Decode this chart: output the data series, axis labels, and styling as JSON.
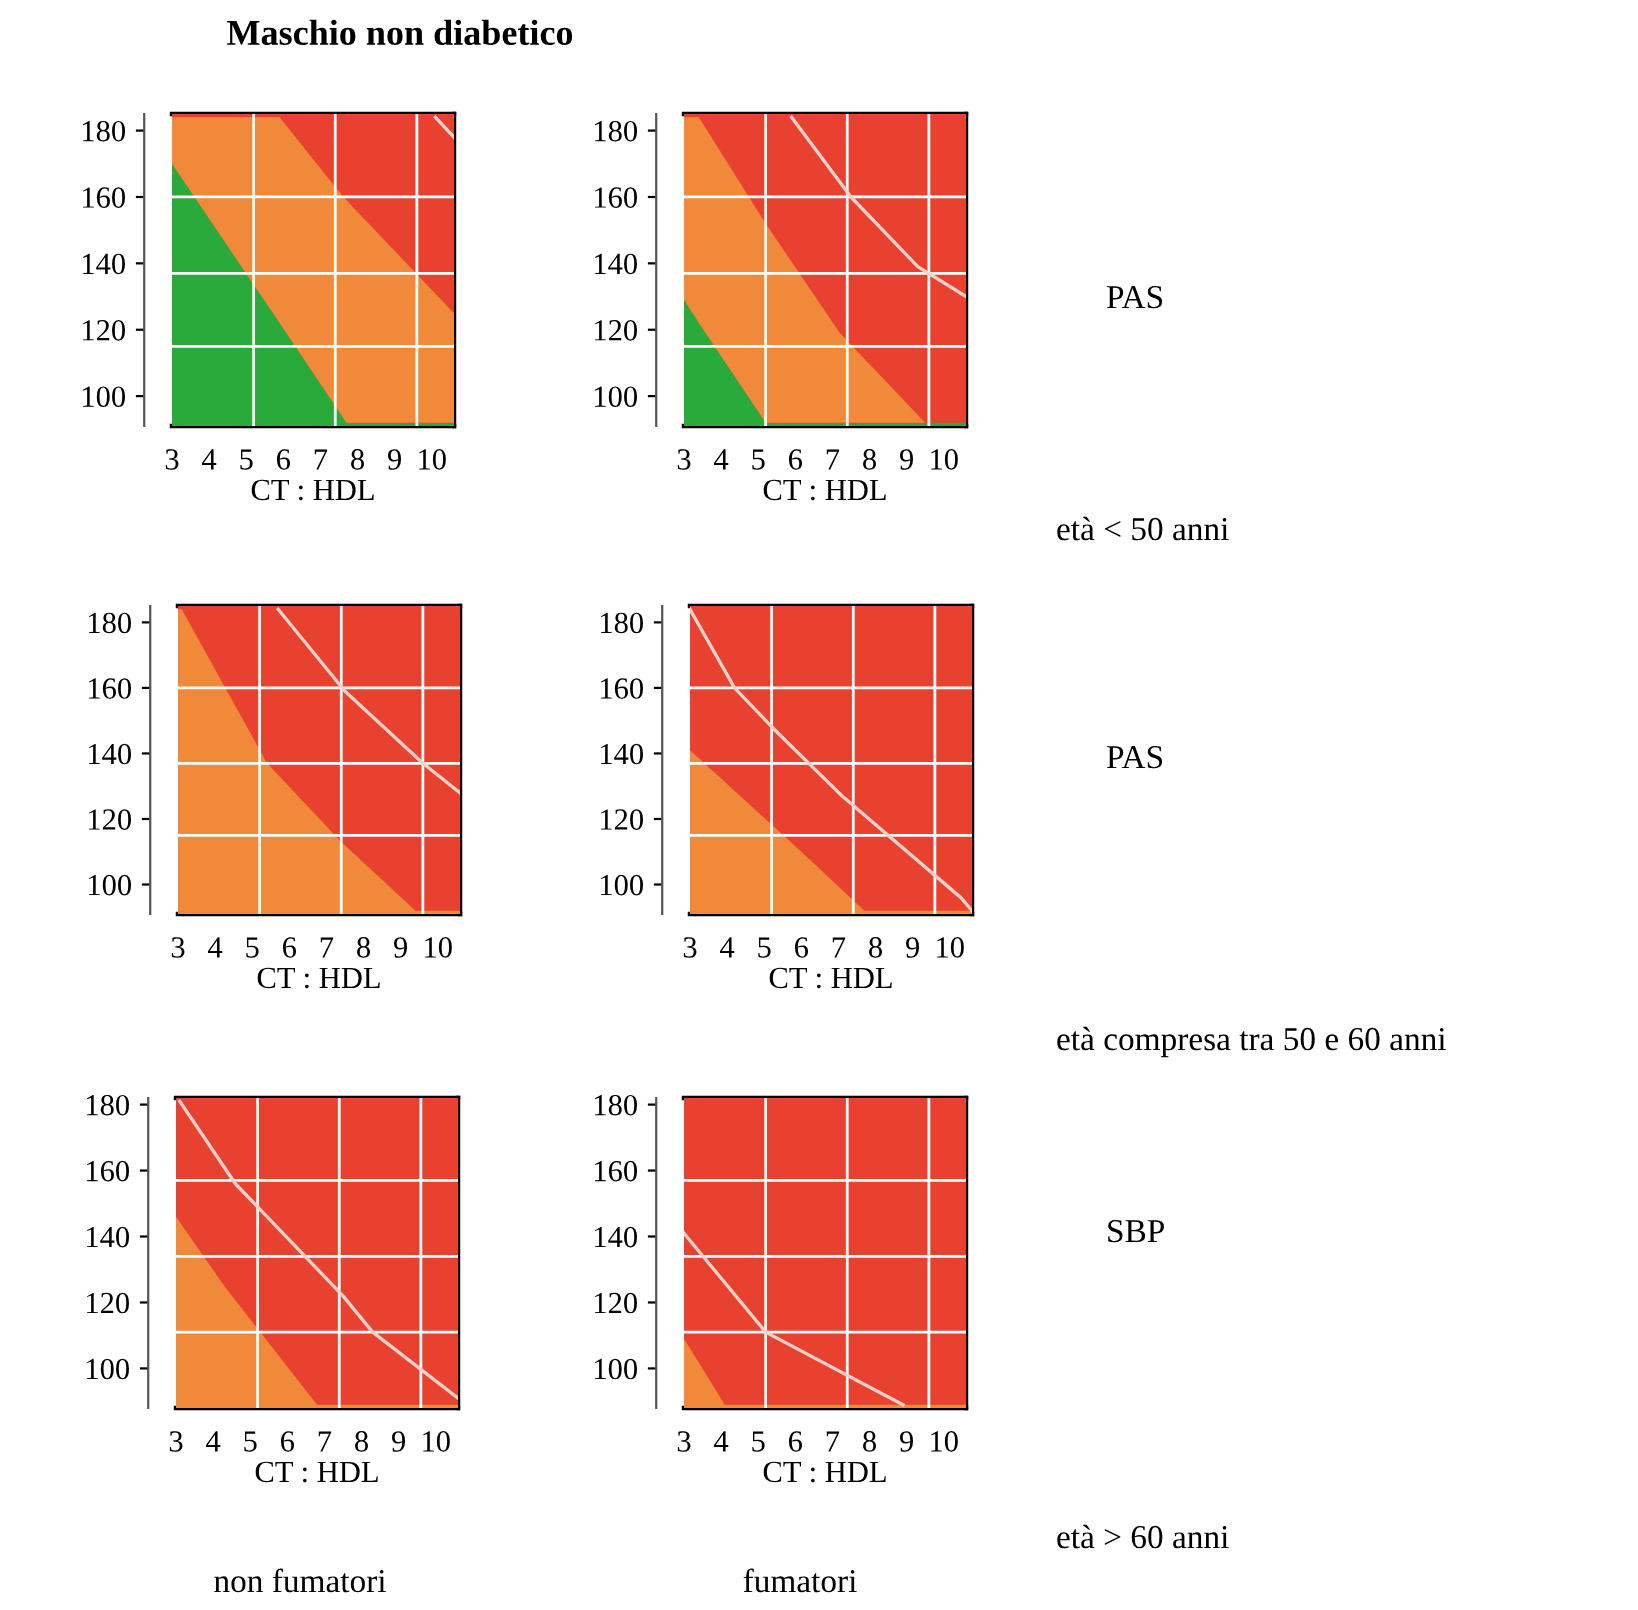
{
  "chart_data": [
    {
      "type": "area",
      "xlabel": "CT : HDL",
      "xlim": [
        3,
        10.6
      ],
      "ylim": [
        91,
        185
      ],
      "xticks": [
        3,
        4,
        5,
        6,
        7,
        8,
        9,
        10
      ],
      "yticks": [
        100,
        120,
        140,
        160,
        180
      ],
      "legend": false,
      "bands": [
        {
          "axis": "y",
          "from": 91,
          "to": 185,
          "color": "#e8412f"
        }
      ],
      "ref_lines": [
        {
          "axis": "x",
          "value": 5.2,
          "color": "#ffffff"
        },
        {
          "axis": "x",
          "value": 7.4,
          "color": "#ffffff"
        },
        {
          "axis": "x",
          "value": 9.6,
          "color": "#ffffff"
        },
        {
          "axis": "y",
          "value": 115,
          "color": "#ffffff"
        },
        {
          "axis": "y",
          "value": 137,
          "color": "#ffffff"
        },
        {
          "axis": "y",
          "value": 160,
          "color": "#ffffff"
        }
      ],
      "x": [
        3,
        5.9,
        7.4,
        7.7,
        10.6
      ],
      "series": [
        {
          "type": "area",
          "color": "#2aaa3a",
          "values": [
            170,
            122,
            97,
            92,
            92
          ]
        },
        {
          "type": "area",
          "color": "#f08a3a",
          "values": [
            184,
            184,
            163,
            159,
            125
          ]
        },
        {
          "type": "line",
          "color": "#f4d0c8",
          "x": [
            10.1,
            10.6
          ],
          "values": [
            184,
            178
          ]
        }
      ]
    },
    {
      "type": "area",
      "xlabel": "CT : HDL",
      "xlim": [
        3,
        10.6
      ],
      "ylim": [
        91,
        185
      ],
      "xticks": [
        3,
        4,
        5,
        6,
        7,
        8,
        9,
        10
      ],
      "yticks": [
        100,
        120,
        140,
        160,
        180
      ],
      "legend": false,
      "bands": [
        {
          "axis": "y",
          "from": 91,
          "to": 185,
          "color": "#e8412f"
        }
      ],
      "ref_lines": [
        {
          "axis": "x",
          "value": 5.2,
          "color": "#ffffff"
        },
        {
          "axis": "x",
          "value": 7.4,
          "color": "#ffffff"
        },
        {
          "axis": "x",
          "value": 9.6,
          "color": "#ffffff"
        },
        {
          "axis": "y",
          "value": 115,
          "color": "#ffffff"
        },
        {
          "axis": "y",
          "value": 137,
          "color": "#ffffff"
        },
        {
          "axis": "y",
          "value": 160,
          "color": "#ffffff"
        }
      ],
      "x": [
        3,
        3.4,
        5.2,
        7.2,
        9.5,
        10.6
      ],
      "series": [
        {
          "type": "area",
          "color": "#2aaa3a",
          "values": [
            129,
            122,
            92,
            92,
            92,
            92
          ]
        },
        {
          "type": "area",
          "color": "#f08a3a",
          "values": [
            184,
            184,
            152,
            119,
            92,
            92
          ]
        },
        {
          "type": "line",
          "color": "#f4d0c8",
          "x": [
            5.9,
            7.5,
            9.3,
            10.6
          ],
          "values": [
            184,
            160,
            139,
            130
          ]
        }
      ]
    },
    {
      "type": "area",
      "xlabel": "CT : HDL",
      "xlim": [
        3,
        10.6
      ],
      "ylim": [
        91,
        185
      ],
      "xticks": [
        3,
        4,
        5,
        6,
        7,
        8,
        9,
        10
      ],
      "yticks": [
        100,
        120,
        140,
        160,
        180
      ],
      "legend": false,
      "bands": [
        {
          "axis": "y",
          "from": 91,
          "to": 185,
          "color": "#e8412f"
        }
      ],
      "ref_lines": [
        {
          "axis": "x",
          "value": 5.2,
          "color": "#ffffff"
        },
        {
          "axis": "x",
          "value": 7.4,
          "color": "#ffffff"
        },
        {
          "axis": "x",
          "value": 9.6,
          "color": "#ffffff"
        },
        {
          "axis": "y",
          "value": 115,
          "color": "#ffffff"
        },
        {
          "axis": "y",
          "value": 137,
          "color": "#ffffff"
        },
        {
          "axis": "y",
          "value": 160,
          "color": "#ffffff"
        }
      ],
      "x": [
        3,
        3.1,
        5.4,
        7.4,
        9.4,
        10.6
      ],
      "series": [
        {
          "type": "area",
          "color": "#f08a3a",
          "values": [
            184,
            184,
            137,
            113,
            92,
            92
          ]
        },
        {
          "type": "line",
          "color": "#f4d0c8",
          "x": [
            5.7,
            7.5,
            9.6,
            10.6
          ],
          "values": [
            184,
            159,
            137,
            128
          ]
        }
      ]
    },
    {
      "type": "area",
      "xlabel": "CT : HDL",
      "xlim": [
        3,
        10.6
      ],
      "ylim": [
        91,
        185
      ],
      "xticks": [
        3,
        4,
        5,
        6,
        7,
        8,
        9,
        10
      ],
      "yticks": [
        100,
        120,
        140,
        160,
        180
      ],
      "legend": false,
      "bands": [
        {
          "axis": "y",
          "from": 91,
          "to": 185,
          "color": "#e8412f"
        }
      ],
      "ref_lines": [
        {
          "axis": "x",
          "value": 5.2,
          "color": "#ffffff"
        },
        {
          "axis": "x",
          "value": 7.4,
          "color": "#ffffff"
        },
        {
          "axis": "x",
          "value": 9.6,
          "color": "#ffffff"
        },
        {
          "axis": "y",
          "value": 115,
          "color": "#ffffff"
        },
        {
          "axis": "y",
          "value": 137,
          "color": "#ffffff"
        },
        {
          "axis": "y",
          "value": 160,
          "color": "#ffffff"
        }
      ],
      "x": [
        3,
        6.0,
        7.7,
        10.6
      ],
      "series": [
        {
          "type": "area",
          "color": "#f08a3a",
          "values": [
            141,
            110,
            92,
            92
          ]
        },
        {
          "type": "line",
          "color": "#f4d0c8",
          "x": [
            3,
            4.2,
            5.3,
            7.1,
            10.3,
            10.6
          ],
          "values": [
            184,
            160,
            147,
            127,
            96,
            92
          ]
        }
      ]
    },
    {
      "type": "area",
      "xlabel": "CT : HDL",
      "xlim": [
        3,
        10.6
      ],
      "ylim": [
        88,
        182
      ],
      "xticks": [
        3,
        4,
        5,
        6,
        7,
        8,
        9,
        10
      ],
      "yticks": [
        100,
        120,
        140,
        160,
        180
      ],
      "legend": false,
      "bands": [
        {
          "axis": "y",
          "from": 88,
          "to": 182,
          "color": "#e8412f"
        }
      ],
      "ref_lines": [
        {
          "axis": "x",
          "value": 5.2,
          "color": "#ffffff"
        },
        {
          "axis": "x",
          "value": 7.4,
          "color": "#ffffff"
        },
        {
          "axis": "x",
          "value": 9.6,
          "color": "#ffffff"
        },
        {
          "axis": "y",
          "value": 111,
          "color": "#ffffff"
        },
        {
          "axis": "y",
          "value": 134,
          "color": "#ffffff"
        },
        {
          "axis": "y",
          "value": 157,
          "color": "#ffffff"
        }
      ],
      "x": [
        3,
        4.3,
        6.8,
        10.6
      ],
      "series": [
        {
          "type": "area",
          "color": "#f08a3a",
          "values": [
            146,
            125,
            89,
            89
          ]
        },
        {
          "type": "line",
          "color": "#f4d0c8",
          "x": [
            3.1,
            4.6,
            7.5,
            8.3,
            10.6
          ],
          "values": [
            181,
            156,
            122,
            111,
            91
          ]
        }
      ]
    },
    {
      "type": "area",
      "xlabel": "CT : HDL",
      "xlim": [
        3,
        10.6
      ],
      "ylim": [
        88,
        182
      ],
      "xticks": [
        3,
        4,
        5,
        6,
        7,
        8,
        9,
        10
      ],
      "yticks": [
        100,
        120,
        140,
        160,
        180
      ],
      "legend": false,
      "bands": [
        {
          "axis": "y",
          "from": 88,
          "to": 182,
          "color": "#e8412f"
        }
      ],
      "ref_lines": [
        {
          "axis": "x",
          "value": 5.2,
          "color": "#ffffff"
        },
        {
          "axis": "x",
          "value": 7.4,
          "color": "#ffffff"
        },
        {
          "axis": "x",
          "value": 9.6,
          "color": "#ffffff"
        },
        {
          "axis": "y",
          "value": 111,
          "color": "#ffffff"
        },
        {
          "axis": "y",
          "value": 134,
          "color": "#ffffff"
        },
        {
          "axis": "y",
          "value": 157,
          "color": "#ffffff"
        }
      ],
      "x": [
        3,
        4.1,
        10.6
      ],
      "series": [
        {
          "type": "area",
          "color": "#f08a3a",
          "values": [
            109,
            89,
            89
          ]
        },
        {
          "type": "line",
          "color": "#f4d0c8",
          "x": [
            3,
            5.2,
            8.9
          ],
          "values": [
            141,
            111,
            89
          ]
        }
      ]
    },
    {
      "type": "other",
      "title": "Maschio non diabetico",
      "annotations": [
        "PAS",
        "età < 50 anni",
        "PAS",
        "età compresa tra 50 e 60 anni",
        "SBP",
        "età > 60 anni",
        "non fumatori",
        "fumatori"
      ]
    }
  ]
}
